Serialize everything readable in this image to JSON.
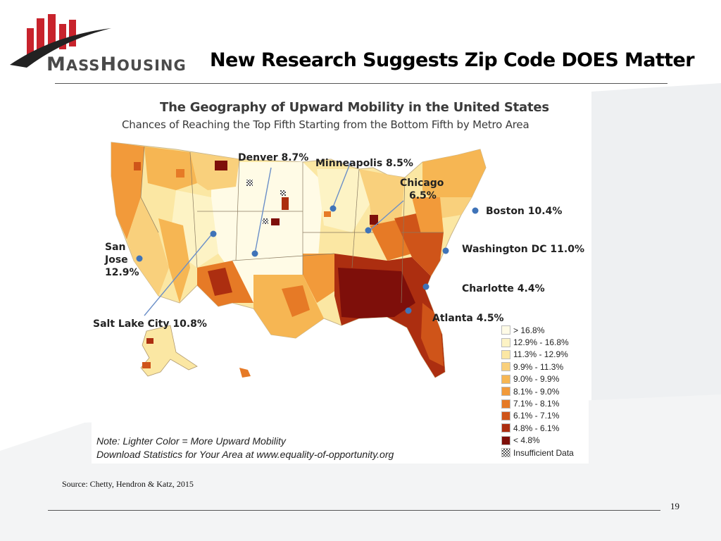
{
  "header": {
    "logo_word_first": "M",
    "logo_word_mid": "ASS",
    "logo_word_second": "H",
    "logo_word_end": "OUSING",
    "title": "New Research Suggests Zip Code DOES Matter"
  },
  "figure": {
    "title": "The Geography of Upward Mobility in the United States",
    "subtitle": "Chances of Reaching the Top Fifth Starting from the Bottom Fifth by Metro Area",
    "callouts": {
      "denver": "Denver 8.7%",
      "minneapolis": "Minneapolis 8.5%",
      "chicago_name": "Chicago",
      "chicago_value": "6.5%",
      "boston": "Boston 10.4%",
      "san_jose_1": "San",
      "san_jose_2": "Jose",
      "san_jose_value": "12.9%",
      "washington": "Washington DC 11.0%",
      "charlotte": "Charlotte 4.4%",
      "atlanta": "Atlanta 4.5%",
      "salt_lake": "Salt Lake City 10.8%"
    },
    "legend": [
      {
        "label": "> 16.8%",
        "color": "#fffbe6"
      },
      {
        "label": "12.9% - 16.8%",
        "color": "#fdf3c5"
      },
      {
        "label": "11.3% - 12.9%",
        "color": "#fbe7a3"
      },
      {
        "label": "9.9% - 11.3%",
        "color": "#f9d07c"
      },
      {
        "label": "9.0% - 9.9%",
        "color": "#f6b653"
      },
      {
        "label": "8.1% - 9.0%",
        "color": "#f29a3a"
      },
      {
        "label": "7.1% - 8.1%",
        "color": "#e67a26"
      },
      {
        "label": "6.1% - 7.1%",
        "color": "#cf5419"
      },
      {
        "label": "4.8% - 6.1%",
        "color": "#ac2e10"
      },
      {
        "label": "< 4.8%",
        "color": "#7e0f0a"
      },
      {
        "label": "Insufficient Data",
        "color": "hatch"
      }
    ],
    "note_1": "Note: Lighter Color = More Upward Mobility",
    "note_2": "Download Statistics for Your Area at www.equality-of-opportunity.org"
  },
  "footer": {
    "source": "Source: Chetty, Hendron & Katz, 2015",
    "page_number": "19"
  },
  "colors": {
    "logo_red": "#c8232c",
    "title_text": "#000000",
    "marker_blue": "#3f73b8"
  }
}
